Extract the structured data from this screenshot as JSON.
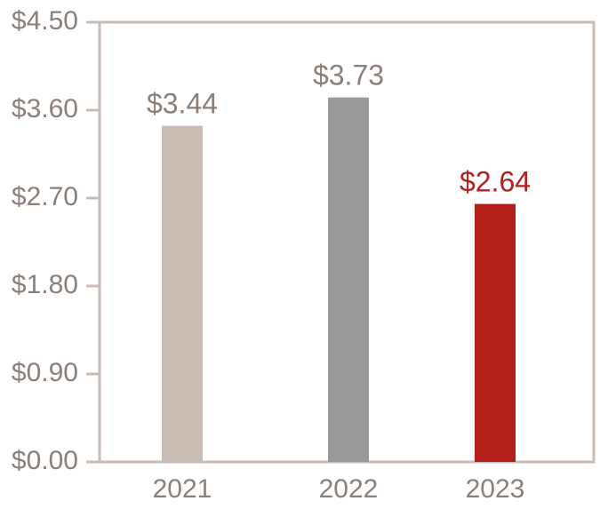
{
  "chart_data": {
    "type": "bar",
    "title": "",
    "xlabel": "",
    "ylabel": "",
    "categories": [
      "2021",
      "2022",
      "2023"
    ],
    "values": [
      3.44,
      3.73,
      2.64
    ],
    "data_labels": [
      "$3.44",
      "$3.73",
      "$2.64"
    ],
    "ylim": [
      0,
      4.5
    ],
    "yticks": [
      0,
      0.9,
      1.8,
      2.7,
      3.6,
      4.5
    ],
    "ytick_labels": [
      "$0.00",
      "$0.90",
      "$1.80",
      "$2.70",
      "$3.60",
      "$4.50"
    ],
    "grid": false,
    "legend": "none",
    "bar_colors": [
      "#c9bcb4",
      "#9a9a9a",
      "#b3201b"
    ],
    "label_colors": [
      "#8c7f78",
      "#8c7f78",
      "#b3201b"
    ],
    "axis_color": "#c9bcb4"
  }
}
